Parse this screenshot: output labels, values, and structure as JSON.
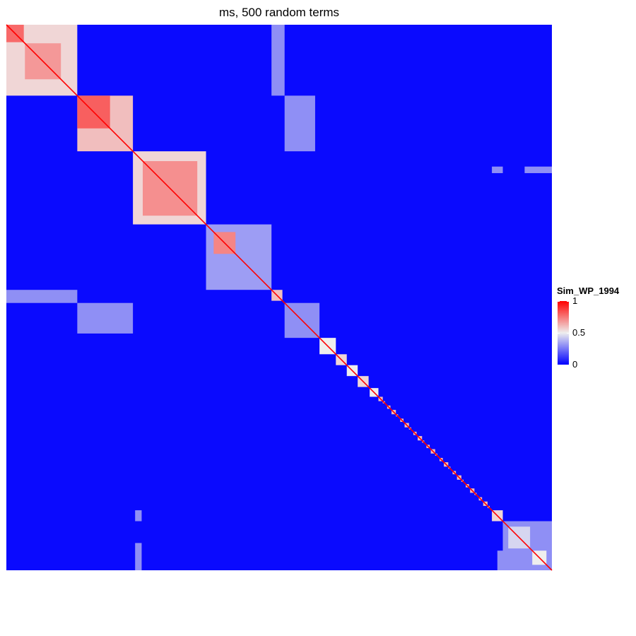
{
  "chart_data": {
    "type": "heatmap",
    "title": "ms, 500 random terms",
    "n_terms": 500,
    "row_labels_shown": false,
    "column_labels_shown": false,
    "color_scale": {
      "name": "Sim_WP_1994",
      "range": [
        0,
        1
      ],
      "breaks": [
        0,
        0.5,
        1
      ],
      "break_labels": [
        "0",
        "0.5",
        "1"
      ],
      "low_color": "#0000FF",
      "mid_color": "#EEEEEE",
      "high_color": "#FF0000"
    },
    "diagonal_value": 1,
    "background_value": 0.02,
    "clusters": [
      {
        "start": 0,
        "end": 65,
        "value": 0.55
      },
      {
        "start": 0,
        "end": 16,
        "value": 0.78
      },
      {
        "start": 17,
        "end": 50,
        "value": 0.68
      },
      {
        "start": 65,
        "end": 116,
        "value": 0.6
      },
      {
        "start": 65,
        "end": 95,
        "value": 0.8
      },
      {
        "start": 116,
        "end": 183,
        "value": 0.55
      },
      {
        "start": 125,
        "end": 175,
        "value": 0.7
      },
      {
        "start": 183,
        "end": 243,
        "value": 0.33
      },
      {
        "start": 190,
        "end": 210,
        "value": 0.72
      },
      {
        "start": 243,
        "end": 253,
        "value": 0.6
      },
      {
        "start": 255,
        "end": 287,
        "value": 0.3
      },
      {
        "start": 287,
        "end": 302,
        "value": 0.5
      },
      {
        "start": 302,
        "end": 312,
        "value": 0.55
      },
      {
        "start": 312,
        "end": 322,
        "value": 0.5
      },
      {
        "start": 322,
        "end": 332,
        "value": 0.55
      },
      {
        "start": 333,
        "end": 341,
        "value": 0.5
      },
      {
        "start": 445,
        "end": 455,
        "value": 0.55
      },
      {
        "start": 455,
        "end": 500,
        "value": 0.3
      },
      {
        "start": 460,
        "end": 480,
        "value": 0.45
      },
      {
        "start": 482,
        "end": 495,
        "value": 0.5
      }
    ],
    "off_diagonal_blocks": [
      {
        "rows": [
          0,
          65
        ],
        "cols": [
          243,
          255
        ],
        "value": 0.3
      },
      {
        "rows": [
          243,
          255
        ],
        "cols": [
          0,
          65
        ],
        "value": 0.3
      },
      {
        "rows": [
          65,
          116
        ],
        "cols": [
          255,
          283
        ],
        "value": 0.3
      },
      {
        "rows": [
          255,
          283
        ],
        "cols": [
          65,
          116
        ],
        "value": 0.3
      },
      {
        "rows": [
          130,
          136
        ],
        "cols": [
          445,
          455
        ],
        "value": 0.3
      },
      {
        "rows": [
          445,
          455
        ],
        "cols": [
          118,
          124
        ],
        "value": 0.3
      },
      {
        "rows": [
          130,
          136
        ],
        "cols": [
          475,
          500
        ],
        "value": 0.3
      },
      {
        "rows": [
          475,
          500
        ],
        "cols": [
          118,
          124
        ],
        "value": 0.3
      },
      {
        "rows": [
          482,
          500
        ],
        "cols": [
          450,
          460
        ],
        "value": 0.3
      }
    ]
  }
}
